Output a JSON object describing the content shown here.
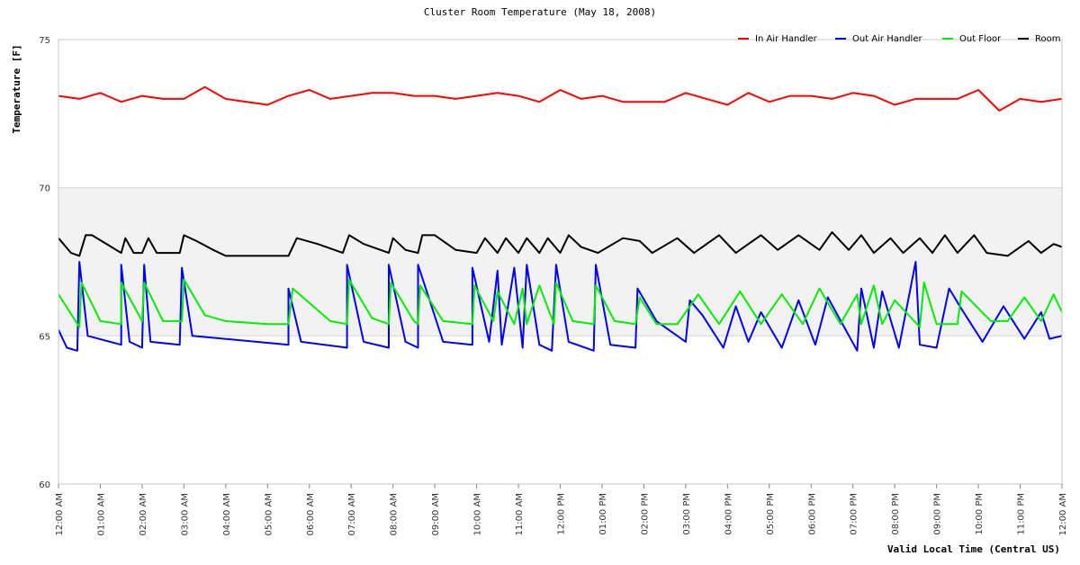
{
  "chart_data": {
    "type": "line",
    "title": "Cluster Room Temperature (May 18, 2008)",
    "xlabel": "Valid Local Time (Central US)",
    "ylabel": "Temperature [F]",
    "ylim": [
      60,
      75
    ],
    "yticks": [
      "60",
      "65",
      "70",
      "75"
    ],
    "xlim": [
      0,
      24
    ],
    "x_tick_labels": [
      "12:00 AM",
      "01:00 AM",
      "02:00 AM",
      "03:00 AM",
      "04:00 AM",
      "05:00 AM",
      "06:00 AM",
      "07:00 AM",
      "08:00 AM",
      "09:00 AM",
      "10:00 AM",
      "11:00 AM",
      "12:00 PM",
      "01:00 PM",
      "02:00 PM",
      "03:00 PM",
      "04:00 PM",
      "05:00 PM",
      "06:00 PM",
      "07:00 PM",
      "08:00 PM",
      "09:00 PM",
      "10:00 PM",
      "11:00 PM",
      "12:00 AM"
    ],
    "shaded_band": [
      65,
      70
    ],
    "grid": "horizontal",
    "legend_position": "top-right",
    "x_unit": "hours since midnight",
    "series": [
      {
        "name": "In Air Handler",
        "color": "#ff0000",
        "x": [
          0,
          0.5,
          1,
          1.5,
          2,
          2.5,
          3,
          3.5,
          4,
          4.5,
          5,
          5.5,
          6,
          6.5,
          7,
          7.5,
          8,
          8.5,
          9,
          9.5,
          10,
          10.5,
          11,
          11.5,
          12,
          12.5,
          13,
          13.5,
          14,
          14.5,
          15,
          15.5,
          16,
          16.5,
          17,
          17.5,
          18,
          18.5,
          19,
          19.5,
          20,
          20.5,
          21,
          21.5,
          22,
          22.5,
          23,
          23.5,
          24
        ],
        "values": [
          73.1,
          73.0,
          73.2,
          72.9,
          73.1,
          73.0,
          73.0,
          73.4,
          73.0,
          72.9,
          72.8,
          73.1,
          73.3,
          73.0,
          73.1,
          73.2,
          73.2,
          73.1,
          73.1,
          73.0,
          73.1,
          73.2,
          73.1,
          72.9,
          73.3,
          73.0,
          73.1,
          72.9,
          72.9,
          72.9,
          73.2,
          73.0,
          72.8,
          73.2,
          72.9,
          73.1,
          73.1,
          73.0,
          73.2,
          73.1,
          72.8,
          73.0,
          73.0,
          73.0,
          73.3,
          72.6,
          73.0,
          72.9,
          73.0
        ]
      },
      {
        "name": "Out Air Handler",
        "color": "#0000ff",
        "x": [
          0,
          0.2,
          0.45,
          0.5,
          0.7,
          1.5,
          1.5,
          1.7,
          2,
          2.05,
          2.2,
          2.9,
          2.95,
          3.2,
          5.5,
          5.5,
          5.8,
          6.9,
          6.9,
          7.3,
          7.9,
          7.9,
          8.3,
          8.6,
          8.6,
          9.2,
          9.9,
          9.9,
          10.3,
          10.5,
          10.6,
          10.9,
          11.1,
          11.2,
          11.5,
          11.8,
          11.9,
          12.2,
          12.8,
          12.85,
          13.2,
          13.8,
          13.85,
          14.3,
          15,
          15.1,
          15.4,
          15.9,
          16.2,
          16.5,
          16.8,
          17.3,
          17.7,
          18.1,
          18.4,
          19.1,
          19.2,
          19.5,
          19.7,
          20.1,
          20.5,
          20.6,
          21,
          21.3,
          21.6,
          22.1,
          22.6,
          23.1,
          23.5,
          23.7,
          24
        ],
        "values": [
          65.2,
          64.6,
          64.5,
          67.5,
          65.0,
          64.7,
          67.4,
          64.8,
          64.6,
          67.4,
          64.8,
          64.7,
          67.3,
          65.0,
          64.7,
          66.6,
          64.8,
          64.6,
          67.4,
          64.8,
          64.6,
          67.4,
          64.8,
          64.6,
          67.4,
          64.8,
          64.7,
          67.3,
          64.8,
          67.2,
          64.7,
          67.3,
          64.6,
          67.4,
          64.7,
          64.5,
          67.4,
          64.8,
          64.5,
          67.4,
          64.7,
          64.6,
          66.6,
          65.5,
          64.8,
          66.2,
          65.7,
          64.6,
          66.0,
          64.8,
          65.8,
          64.6,
          66.2,
          64.7,
          66.3,
          64.5,
          66.6,
          64.6,
          66.5,
          64.6,
          67.5,
          64.7,
          64.6,
          66.6,
          65.9,
          64.8,
          66.0,
          64.9,
          65.8,
          64.9,
          65.0
        ]
      },
      {
        "name": "Out Floor",
        "color": "#00ee00",
        "x": [
          0,
          0.5,
          0.55,
          1,
          1.5,
          1.5,
          2,
          2.05,
          2.5,
          2.95,
          3,
          3.5,
          4,
          5,
          5.5,
          5.6,
          6.5,
          6.9,
          6.95,
          7.5,
          7.9,
          7.95,
          8.5,
          8.6,
          8.65,
          9.2,
          9.9,
          9.95,
          10.4,
          10.5,
          10.9,
          11.1,
          11.2,
          11.5,
          11.85,
          11.9,
          12.3,
          12.8,
          12.85,
          13.3,
          13.8,
          13.9,
          14.3,
          14.8,
          15.3,
          15.8,
          16.3,
          16.8,
          17.3,
          17.8,
          18.2,
          18.7,
          19.1,
          19.2,
          19.5,
          19.7,
          20,
          20.6,
          20.7,
          21.0,
          21.5,
          21.6,
          22.3,
          22.7,
          23.1,
          23.5,
          23.8,
          24
        ],
        "values": [
          66.4,
          65.3,
          66.8,
          65.5,
          65.4,
          66.8,
          65.5,
          66.8,
          65.5,
          65.5,
          66.9,
          65.7,
          65.5,
          65.4,
          65.4,
          66.6,
          65.5,
          65.4,
          66.9,
          65.6,
          65.4,
          66.8,
          65.5,
          65.4,
          66.7,
          65.5,
          65.4,
          66.7,
          65.5,
          66.5,
          65.4,
          66.6,
          65.4,
          66.7,
          65.4,
          66.8,
          65.5,
          65.4,
          66.7,
          65.5,
          65.4,
          66.3,
          65.4,
          65.4,
          66.4,
          65.4,
          66.5,
          65.4,
          66.4,
          65.4,
          66.6,
          65.4,
          66.4,
          65.4,
          66.7,
          65.4,
          66.2,
          65.3,
          66.8,
          65.4,
          65.4,
          66.5,
          65.5,
          65.5,
          66.3,
          65.5,
          66.4,
          65.8
        ]
      },
      {
        "name": "Room",
        "color": "#000000",
        "x": [
          0,
          0.3,
          0.5,
          0.65,
          0.8,
          1.5,
          1.6,
          1.8,
          2,
          2.15,
          2.35,
          2.9,
          3.0,
          3.3,
          3.7,
          4,
          5,
          5.5,
          5.7,
          6.2,
          6.8,
          6.95,
          7.3,
          7.9,
          8.0,
          8.3,
          8.6,
          8.7,
          9.0,
          9.5,
          10,
          10.2,
          10.5,
          10.7,
          11,
          11.2,
          11.5,
          11.7,
          12,
          12.2,
          12.5,
          12.9,
          13.5,
          13.9,
          14.2,
          14.8,
          15.2,
          15.8,
          16.2,
          16.8,
          17.2,
          17.7,
          18.2,
          18.5,
          18.9,
          19.2,
          19.5,
          19.9,
          20.2,
          20.6,
          20.9,
          21.2,
          21.5,
          21.9,
          22.2,
          22.7,
          23.2,
          23.5,
          23.8,
          24
        ],
        "values": [
          68.3,
          67.8,
          67.7,
          68.4,
          68.4,
          67.8,
          68.3,
          67.8,
          67.8,
          68.3,
          67.8,
          67.8,
          68.4,
          68.2,
          67.9,
          67.7,
          67.7,
          67.7,
          68.3,
          68.1,
          67.8,
          68.4,
          68.1,
          67.8,
          68.3,
          67.9,
          67.8,
          68.4,
          68.4,
          67.9,
          67.8,
          68.3,
          67.8,
          68.3,
          67.8,
          68.3,
          67.8,
          68.3,
          67.8,
          68.4,
          68.0,
          67.8,
          68.3,
          68.2,
          67.8,
          68.3,
          67.8,
          68.4,
          67.8,
          68.4,
          67.9,
          68.4,
          67.9,
          68.5,
          67.9,
          68.4,
          67.8,
          68.3,
          67.8,
          68.3,
          67.8,
          68.4,
          67.8,
          68.4,
          67.8,
          67.7,
          68.2,
          67.8,
          68.1,
          68.0
        ]
      }
    ]
  }
}
